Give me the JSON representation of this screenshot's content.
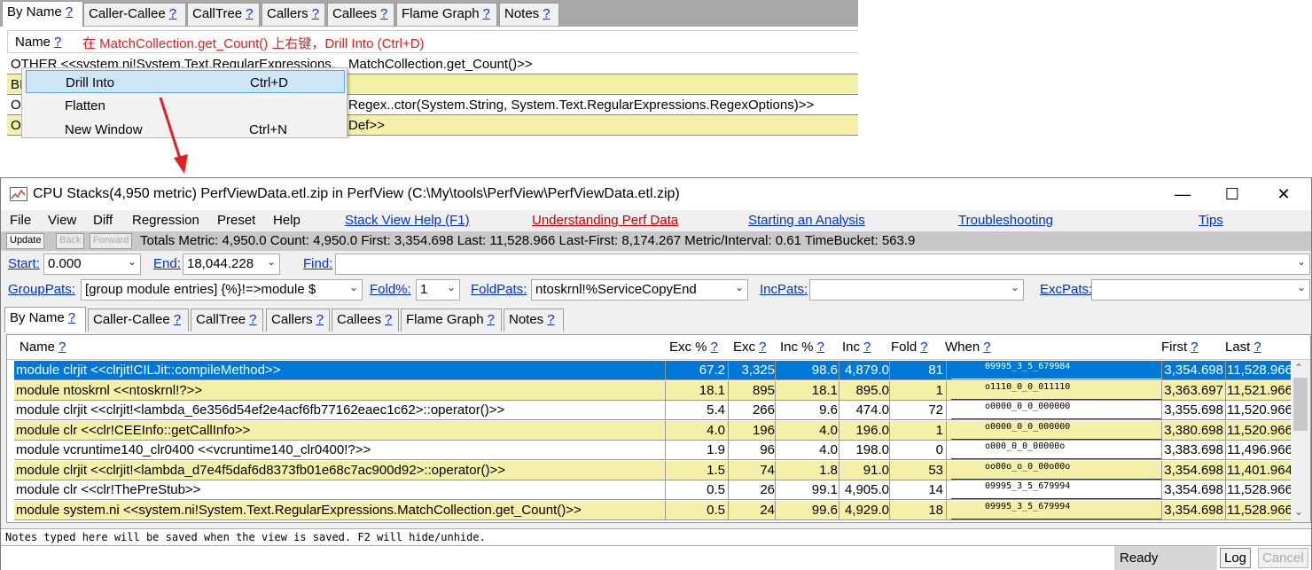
{
  "snippet": {
    "tabs": [
      {
        "label": "By Name"
      },
      {
        "label": "Caller-Callee"
      },
      {
        "label": "CallTree"
      },
      {
        "label": "Callers"
      },
      {
        "label": "Callees"
      },
      {
        "label": "Flame Graph"
      },
      {
        "label": "Notes"
      }
    ],
    "help_mark": "?",
    "header_name": "Name",
    "annotation": "在 MatchCollection.get_Count() 上右键，Drill Into (Ctrl+D)",
    "rows": [
      {
        "left": "OTHER <<system.ni!System.Text.RegularExpressions.",
        "right": "MatchCollection.get_Count()>>"
      },
      {
        "left": "BI",
        "right": ""
      },
      {
        "left": "O",
        "right": "Regex..ctor(System.String, System.Text.RegularExpressions.RegexOptions)>>"
      },
      {
        "left": "O",
        "right": "Def>>"
      }
    ],
    "context_menu": [
      {
        "label": "Drill Into",
        "shortcut": "Ctrl+D"
      },
      {
        "label": "Flatten",
        "shortcut": ""
      },
      {
        "label": "New Window",
        "shortcut": "Ctrl+N"
      }
    ]
  },
  "window": {
    "title": "CPU Stacks(4,950 metric) PerfViewData.etl.zip in PerfView (C:\\My\\tools\\PerfView\\PerfViewData.etl.zip)",
    "controls": {
      "minimize": "—",
      "maximize": "☐",
      "close": "✕"
    },
    "menu": [
      "File",
      "View",
      "Diff",
      "Regression",
      "Preset",
      "Help"
    ],
    "help_links": [
      "Stack View Help (F1)",
      "Understanding Perf Data",
      "Starting an Analysis",
      "Troubleshooting",
      "Tips"
    ],
    "buttons": {
      "update": "Update",
      "back": "Back",
      "forward": "Forward"
    },
    "totals": "Totals Metric: 4,950.0  Count: 4,950.0  First: 3,354.698 Last: 11,528.966  Last-First: 8,174.267  Metric/Interval: 0.61  TimeBucket: 563.9",
    "filters": {
      "start_label": "Start:",
      "start_value": "0.000",
      "end_label": "End:",
      "end_value": "18,044.228",
      "find_label": "Find:",
      "find_value": "",
      "grouppats_label": "GroupPats:",
      "grouppats_value": "[group module entries]  {%}!=>module $",
      "foldpct_label": "Fold%:",
      "foldpct_value": "1",
      "foldpats_label": "FoldPats:",
      "foldpats_value": "ntoskrnl!%ServiceCopyEnd",
      "incpats_label": "IncPats:",
      "incpats_value": "",
      "excpats_label": "ExcPats:",
      "excpats_value": ""
    },
    "tabs": [
      {
        "label": "By Name"
      },
      {
        "label": "Caller-Callee"
      },
      {
        "label": "CallTree"
      },
      {
        "label": "Callers"
      },
      {
        "label": "Callees"
      },
      {
        "label": "Flame Graph"
      },
      {
        "label": "Notes"
      }
    ],
    "columns": [
      "Name",
      "Exc %",
      "Exc",
      "Inc %",
      "Inc",
      "Fold",
      "When",
      "First",
      "Last"
    ],
    "rows": [
      {
        "name": "module clrjit <<clrjit!CILJit::compileMethod>>",
        "exc_pct": "67.2",
        "exc": "3,325",
        "inc_pct": "98.6",
        "inc": "4,879.0",
        "fold": "81",
        "when": "09995_3_5_679984",
        "first": "3,354.698",
        "last": "11,528.966"
      },
      {
        "name": "module ntoskrnl <<ntoskrnl!?>>",
        "exc_pct": "18.1",
        "exc": "895",
        "inc_pct": "18.1",
        "inc": "895.0",
        "fold": "1",
        "when": "o1110_0_0_011110",
        "first": "3,363.697",
        "last": "11,521.966"
      },
      {
        "name": "module clrjit <<clrjit!<lambda_6e356d54ef2e4acf6fb77162eaec1c62>::operator()>>",
        "exc_pct": "5.4",
        "exc": "266",
        "inc_pct": "9.6",
        "inc": "474.0",
        "fold": "72",
        "when": "o0000_0_0_000000",
        "first": "3,355.698",
        "last": "11,520.966"
      },
      {
        "name": "module clr <<clr!CEEInfo::getCallInfo>>",
        "exc_pct": "4.0",
        "exc": "196",
        "inc_pct": "4.0",
        "inc": "196.0",
        "fold": "1",
        "when": "o0000_0_0_000000",
        "first": "3,380.698",
        "last": "11,520.966"
      },
      {
        "name": "module vcruntime140_clr0400 <<vcruntime140_clr0400!?>>",
        "exc_pct": "1.9",
        "exc": "96",
        "inc_pct": "4.0",
        "inc": "198.0",
        "fold": "0",
        "when": "o000_0_0_00000o",
        "first": "3,383.698",
        "last": "11,496.966"
      },
      {
        "name": "module clrjit <<clrjit!<lambda_d7e4f5daf6d8373fb01e68c7ac900d92>::operator()>>",
        "exc_pct": "1.5",
        "exc": "74",
        "inc_pct": "1.8",
        "inc": "91.0",
        "fold": "53",
        "when": "oo00o_o_0_00o00o",
        "first": "3,354.698",
        "last": "11,401.964"
      },
      {
        "name": "module clr <<clr!ThePreStub>>",
        "exc_pct": "0.5",
        "exc": "26",
        "inc_pct": "99.1",
        "inc": "4,905.0",
        "fold": "14",
        "when": "09995_3_5_679994",
        "first": "3,354.698",
        "last": "11,528.966"
      },
      {
        "name": "module system.ni <<system.ni!System.Text.RegularExpressions.MatchCollection.get_Count()>>",
        "exc_pct": "0.5",
        "exc": "24",
        "inc_pct": "99.6",
        "inc": "4,929.0",
        "fold": "18",
        "when": "09995_3_5_679994",
        "first": "3,354.698",
        "last": "11,528.966"
      }
    ],
    "notes_text": "Notes typed here will be saved when the view is saved. F2 will hide/unhide.",
    "status": "Ready",
    "log_button": "Log",
    "cancel_button": "Cancel",
    "colors": {
      "selection": "#0078d7",
      "highlight_row": "#f5f0a8",
      "annotation": "#e02020",
      "arrow": "#e02020",
      "link": "#0033cc"
    }
  }
}
